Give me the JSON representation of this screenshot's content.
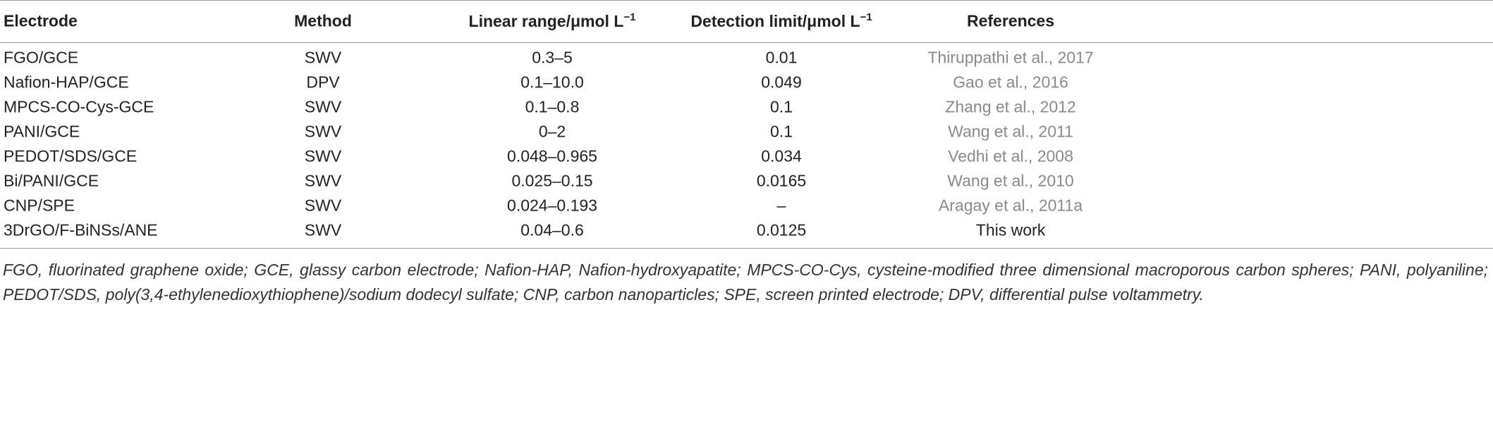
{
  "table": {
    "header": [
      "Electrode",
      "Method",
      {
        "text": "Linear range/μmol L",
        "sup": "−1"
      },
      {
        "text": "Detection limit/μmol L",
        "sup": "−1"
      },
      "References"
    ],
    "rows": [
      [
        "FGO/GCE",
        "SWV",
        "0.3–5",
        "0.01",
        "Thiruppathi et al., 2017"
      ],
      [
        "Nafion-HAP/GCE",
        "DPV",
        "0.1–10.0",
        "0.049",
        "Gao et al., 2016"
      ],
      [
        "MPCS-CO-Cys-GCE",
        "SWV",
        "0.1–0.8",
        "0.1",
        "Zhang et al., 2012"
      ],
      [
        "PANI/GCE",
        "SWV",
        "0–2",
        "0.1",
        "Wang et al., 2011"
      ],
      [
        "PEDOT/SDS/GCE",
        "SWV",
        "0.048–0.965",
        "0.034",
        "Vedhi et al., 2008"
      ],
      [
        "Bi/PANI/GCE",
        "SWV",
        "0.025–0.15",
        "0.0165",
        "Wang et al., 2010"
      ],
      [
        "CNP/SPE",
        "SWV",
        "0.024–0.193",
        "–",
        "Aragay et al., 2011a"
      ],
      [
        "3DrGO/F-BiNSs/ANE",
        "SWV",
        "0.04–0.6",
        "0.0125",
        "This work"
      ]
    ],
    "footnote": "FGO, fluorinated graphene oxide; GCE, glassy carbon electrode; Nafion-HAP, Nafion-hydroxyapatite; MPCS-CO-Cys, cysteine-modified three dimensional macroporous carbon spheres; PANI, polyaniline; PEDOT/SDS, poly(3,4-ethylenedioxythiophene)/sodium dodecyl sulfate; CNP, carbon nanoparticles; SPE, screen printed electrode; DPV, differential pulse voltammetry."
  }
}
